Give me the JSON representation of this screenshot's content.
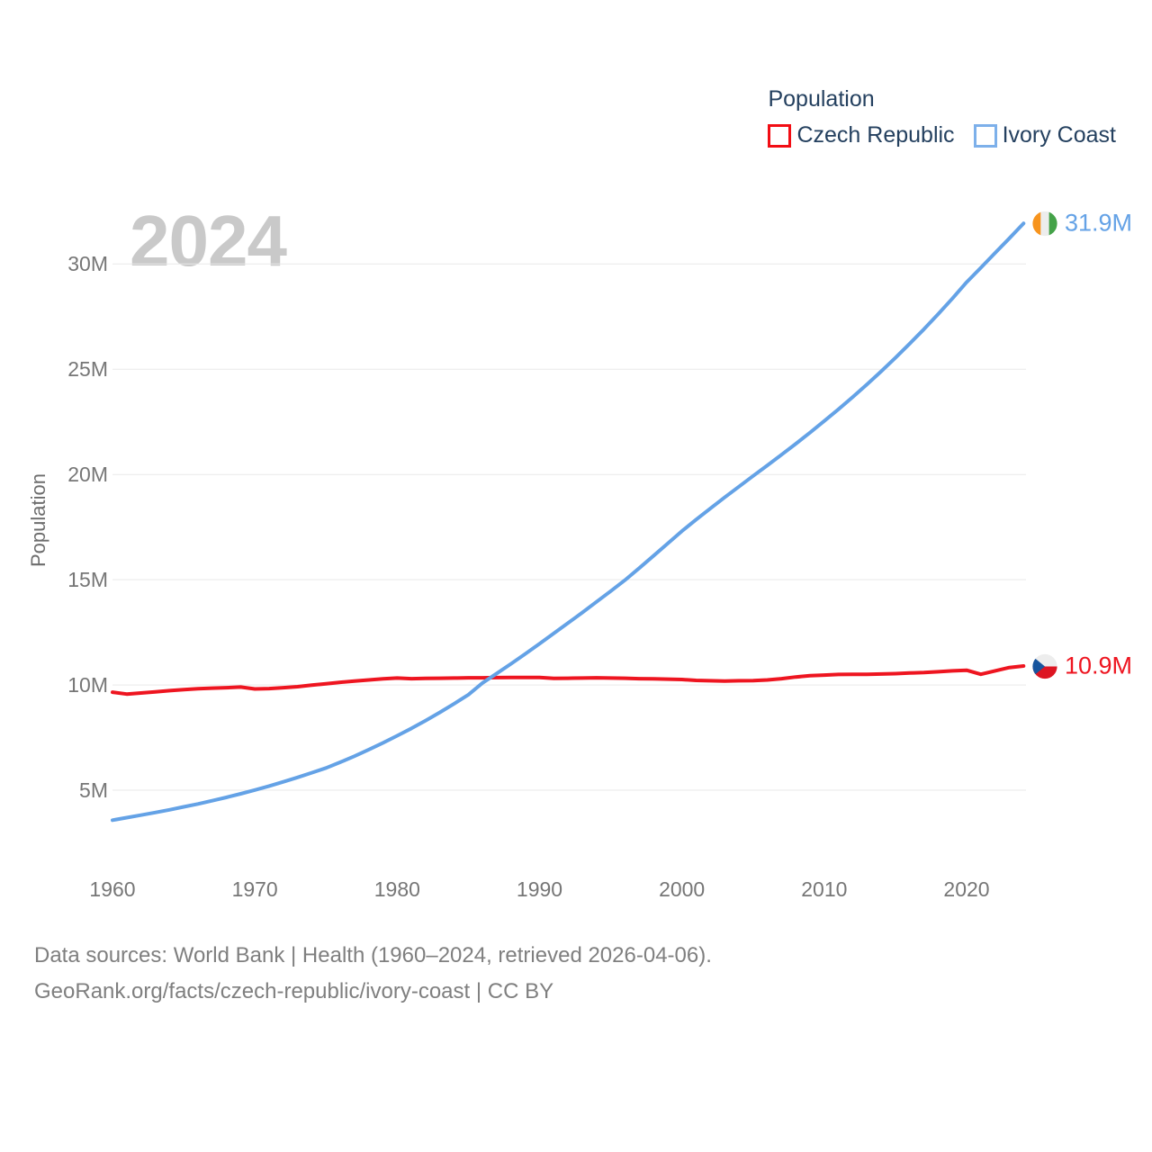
{
  "watermark": "2024",
  "legend": {
    "title": "Population",
    "items": [
      {
        "label": "Czech Republic",
        "swatch_color": "#f20d14"
      },
      {
        "label": "Ivory Coast",
        "swatch_color": "#7db0ea"
      }
    ]
  },
  "y_axis": {
    "title": "Population",
    "ticks": [
      {
        "label": "5M",
        "value": 5
      },
      {
        "label": "10M",
        "value": 10
      },
      {
        "label": "15M",
        "value": 15
      },
      {
        "label": "20M",
        "value": 20
      },
      {
        "label": "25M",
        "value": 25
      },
      {
        "label": "30M",
        "value": 30
      }
    ]
  },
  "x_axis": {
    "ticks": [
      {
        "label": "1960",
        "value": 1960
      },
      {
        "label": "1970",
        "value": 1970
      },
      {
        "label": "1980",
        "value": 1980
      },
      {
        "label": "1990",
        "value": 1990
      },
      {
        "label": "2000",
        "value": 2000
      },
      {
        "label": "2010",
        "value": 2010
      },
      {
        "label": "2020",
        "value": 2020
      }
    ]
  },
  "end_labels": {
    "ivory_coast": {
      "value": "31.9M"
    },
    "czech_republic": {
      "value": "10.9M"
    }
  },
  "flags": {
    "ivory_coast": {
      "stripes": [
        "#f7941d",
        "#ededed",
        "#44a248"
      ]
    },
    "czech_republic": {
      "white": "#ededed",
      "red": "#dd1522",
      "blue": "#17559e"
    }
  },
  "footer": {
    "line1": "Data sources: World Bank | Health (1960–2024, retrieved 2026-04-06).",
    "line2": "GeoRank.org/facts/czech-republic/ivory-coast | CC BY"
  },
  "chart_data": {
    "type": "line",
    "title": "Population",
    "xlabel": "",
    "ylabel": "Population",
    "legend_position": "top-right",
    "grid": "horizontal",
    "x_range": [
      1960,
      2024
    ],
    "ylim_m": [
      2.4,
      32.3
    ],
    "y_gridlines_m": [
      5,
      10,
      15,
      20,
      25,
      30
    ],
    "x": [
      1960,
      1961,
      1962,
      1963,
      1964,
      1965,
      1966,
      1967,
      1968,
      1969,
      1970,
      1971,
      1972,
      1973,
      1974,
      1975,
      1976,
      1977,
      1978,
      1979,
      1980,
      1981,
      1982,
      1983,
      1984,
      1985,
      1986,
      1987,
      1988,
      1989,
      1990,
      1991,
      1992,
      1993,
      1994,
      1995,
      1996,
      1997,
      1998,
      1999,
      2000,
      2001,
      2002,
      2003,
      2004,
      2005,
      2006,
      2007,
      2008,
      2009,
      2010,
      2011,
      2012,
      2013,
      2014,
      2015,
      2016,
      2017,
      2018,
      2019,
      2020,
      2021,
      2022,
      2023,
      2024
    ],
    "series": [
      {
        "name": "Czech Republic",
        "color": "#ee1520",
        "end_label": "10.9M",
        "values": [
          9.66,
          9.57,
          9.62,
          9.67,
          9.73,
          9.78,
          9.82,
          9.85,
          9.87,
          9.9,
          9.81,
          9.83,
          9.87,
          9.92,
          9.99,
          10.06,
          10.13,
          10.19,
          10.24,
          10.29,
          10.33,
          10.3,
          10.31,
          10.32,
          10.33,
          10.34,
          10.34,
          10.35,
          10.36,
          10.36,
          10.36,
          10.31,
          10.32,
          10.33,
          10.34,
          10.33,
          10.32,
          10.3,
          10.29,
          10.28,
          10.26,
          10.22,
          10.2,
          10.19,
          10.2,
          10.21,
          10.24,
          10.3,
          10.38,
          10.44,
          10.47,
          10.5,
          10.51,
          10.51,
          10.52,
          10.54,
          10.57,
          10.59,
          10.63,
          10.67,
          10.7,
          10.51,
          10.67,
          10.83,
          10.9
        ]
      },
      {
        "name": "Ivory Coast",
        "color": "#64a2e6",
        "end_label": "31.9M",
        "values": [
          3.58,
          3.7,
          3.82,
          3.94,
          4.07,
          4.21,
          4.35,
          4.5,
          4.66,
          4.83,
          5.01,
          5.2,
          5.4,
          5.61,
          5.83,
          6.06,
          6.33,
          6.62,
          6.93,
          7.25,
          7.59,
          7.94,
          8.31,
          8.7,
          9.11,
          9.54,
          10.1,
          10.55,
          11.01,
          11.48,
          11.96,
          12.45,
          12.94,
          13.44,
          13.95,
          14.46,
          14.98,
          15.55,
          16.13,
          16.72,
          17.31,
          17.86,
          18.39,
          18.91,
          19.42,
          19.93,
          20.43,
          20.94,
          21.46,
          21.99,
          22.54,
          23.1,
          23.68,
          24.28,
          24.9,
          25.54,
          26.21,
          26.9,
          27.62,
          28.36,
          29.13,
          29.82,
          30.52,
          31.22,
          31.93
        ]
      }
    ]
  }
}
